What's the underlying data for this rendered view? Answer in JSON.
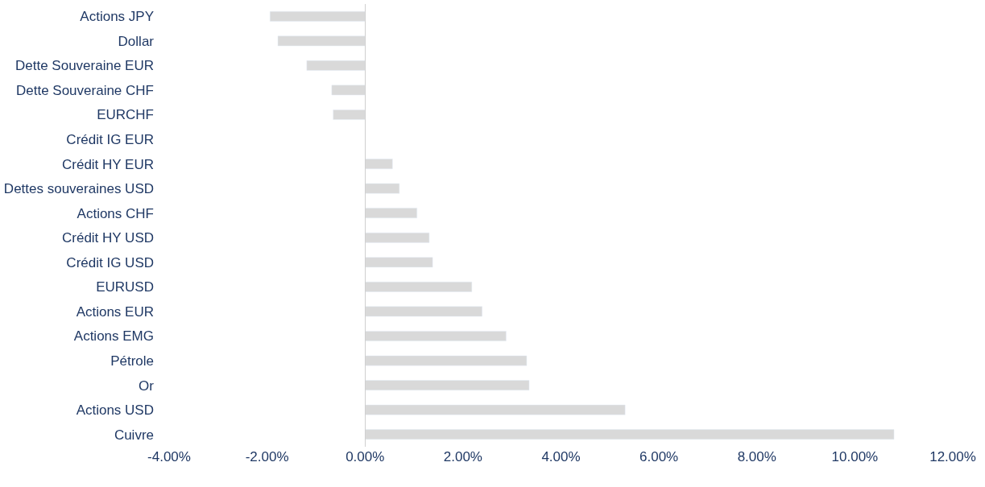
{
  "chart_data": {
    "type": "bar",
    "orientation": "horizontal",
    "categories": [
      "Actions JPY",
      "Dollar",
      "Dette Souveraine EUR",
      "Dette Souveraine CHF",
      "EURCHF",
      "Crédit IG EUR",
      "Crédit HY EUR",
      "Dettes souveraines USD",
      "Actions CHF",
      "Crédit HY USD",
      "Crédit IG USD",
      "EURUSD",
      "Actions EUR",
      "Actions EMG",
      "Pétrole",
      "Or",
      "Actions USD",
      "Cuivre"
    ],
    "values": [
      -1.94,
      -1.78,
      -1.19,
      -0.68,
      -0.65,
      null,
      0.56,
      0.7,
      1.06,
      1.31,
      1.38,
      2.18,
      2.39,
      2.88,
      3.3,
      3.35,
      5.31,
      10.8
    ],
    "color": "#d9d9d9",
    "xlim": [
      -4,
      12
    ],
    "xticks": [
      {
        "value": -4,
        "label": "-4.00%"
      },
      {
        "value": -2,
        "label": "-2.00%"
      },
      {
        "value": 0,
        "label": "0.00%"
      },
      {
        "value": 2,
        "label": "2.00%"
      },
      {
        "value": 4,
        "label": "4.00%"
      },
      {
        "value": 6,
        "label": "6.00%"
      },
      {
        "value": 8,
        "label": "8.00%"
      },
      {
        "value": 10,
        "label": "10.00%"
      },
      {
        "value": 12,
        "label": "12.00%"
      }
    ],
    "legend": false
  }
}
